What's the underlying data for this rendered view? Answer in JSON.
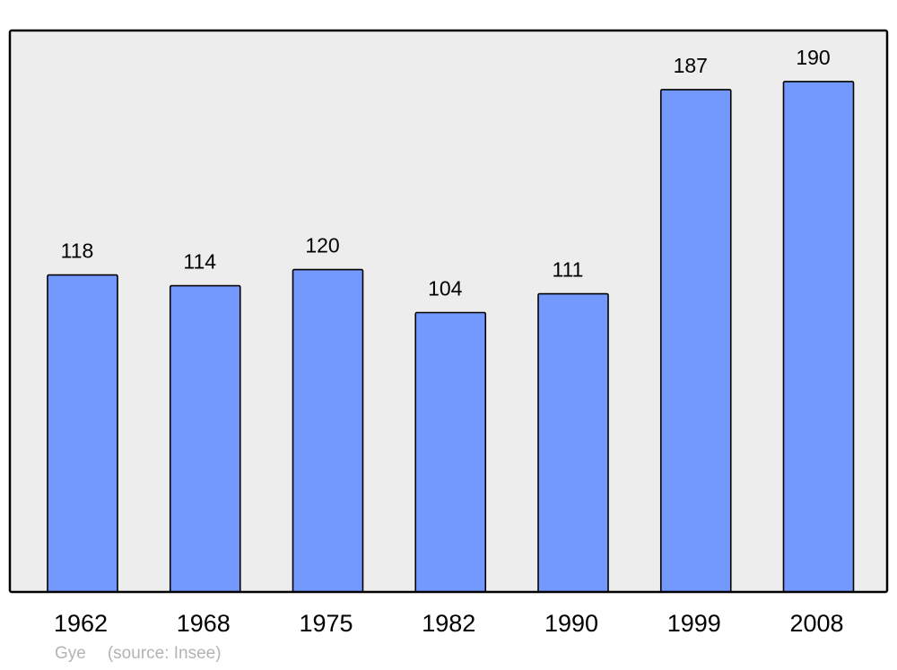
{
  "chart_data": {
    "type": "bar",
    "categories": [
      "1962",
      "1968",
      "1975",
      "1982",
      "1990",
      "1999",
      "2008"
    ],
    "values": [
      118,
      114,
      120,
      104,
      111,
      187,
      190
    ],
    "title": "",
    "xlabel": "",
    "ylabel": "",
    "ylim": [
      0,
      209
    ],
    "grid": false,
    "data_labels": true,
    "colors": {
      "bar": "#7399ff",
      "plot_background": "#ededed",
      "border": "#000000"
    }
  },
  "footer": {
    "place": "Gye",
    "source": "(source: Insee)"
  }
}
